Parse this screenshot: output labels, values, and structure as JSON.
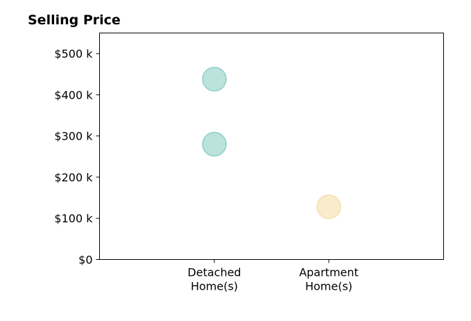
{
  "chart_data": {
    "type": "scatter",
    "title": "Selling Price",
    "xlabel": "",
    "ylabel": "",
    "categories": [
      "Detached\nHome(s)",
      "Apartment\nHome(s)"
    ],
    "ylim": [
      0,
      550000
    ],
    "yticks": [
      0,
      100000,
      200000,
      300000,
      400000,
      500000
    ],
    "ytick_labels": [
      "$0",
      "$100 k",
      "$200 k",
      "$300 k",
      "$400 k",
      "$500 k"
    ],
    "grid": false,
    "series": [
      {
        "category": "Detached\nHome(s)",
        "color": "#8ecfc6",
        "values": [
          438000,
          280000
        ]
      },
      {
        "category": "Apartment\nHome(s)",
        "color": "#f5dfaa",
        "values": [
          128000
        ]
      }
    ]
  }
}
